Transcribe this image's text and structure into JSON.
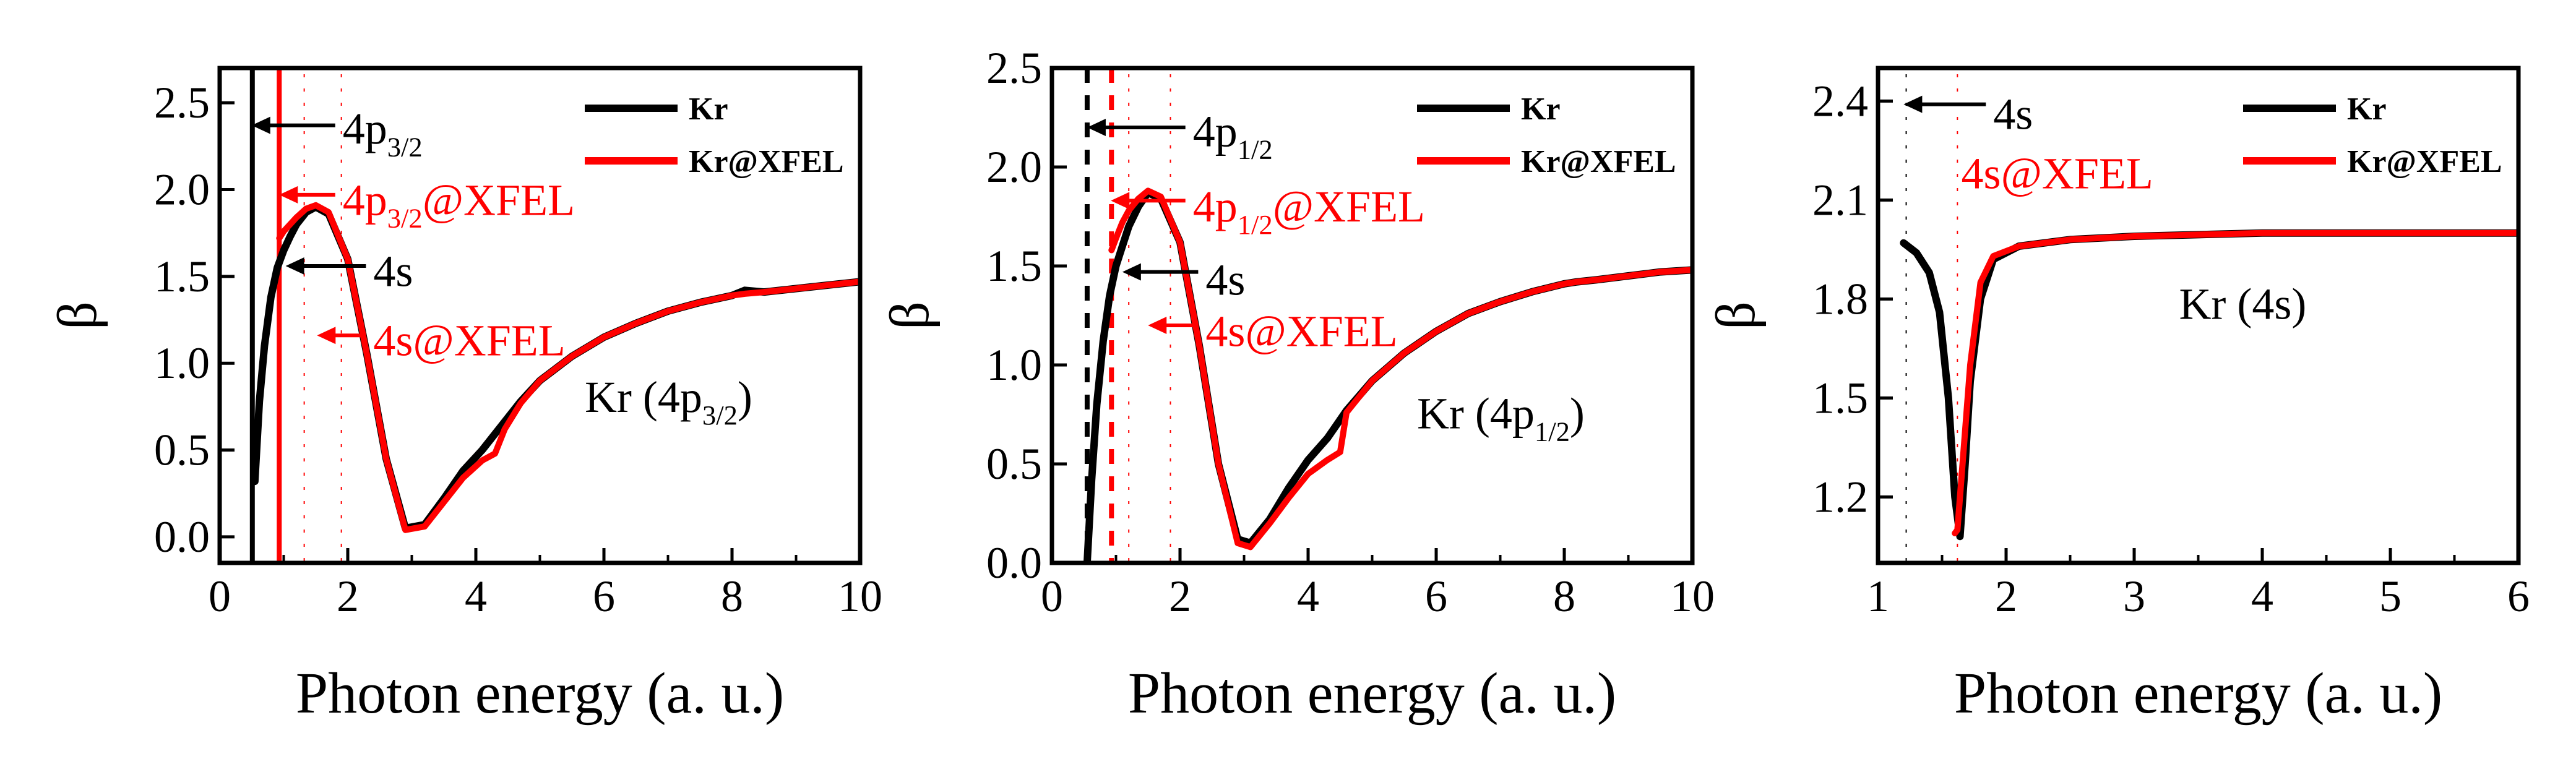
{
  "chart_data": [
    {
      "type": "line",
      "xlabel": "Photon energy (a. u.)",
      "ylabel": "β",
      "xlim": [
        0,
        10
      ],
      "ylim": [
        -0.15,
        2.7
      ],
      "xticks": [
        0,
        2,
        4,
        6,
        8,
        10
      ],
      "yticks": [
        0.0,
        0.5,
        1.0,
        1.5,
        2.0,
        2.5
      ],
      "xtick_labels": [
        "0",
        "2",
        "4",
        "6",
        "8",
        "10"
      ],
      "ytick_labels": [
        "0.0",
        "0.5",
        "1.0",
        "1.5",
        "2.0",
        "2.5"
      ],
      "inset_label": {
        "main": "Kr (4p",
        "sub": "3/2",
        "close": ")",
        "x": 5.7,
        "y": 0.72
      },
      "legend": [
        {
          "label": "Kr",
          "color": "#000000"
        },
        {
          "label": "Kr@XFEL",
          "color": "#ff0000"
        }
      ],
      "thresholds": [
        {
          "x": 0.51,
          "color": "#000000",
          "style": "solid"
        },
        {
          "x": 0.93,
          "color": "#ff0000",
          "style": "solid"
        }
      ],
      "dotted_guides": [
        {
          "x": 1.32,
          "color": "#ff0000"
        },
        {
          "x": 1.9,
          "color": "#ff0000"
        }
      ],
      "annotations": [
        {
          "main": "4p",
          "sub": "3/2",
          "tail": "",
          "color": "#000000",
          "arrow_to": [
            0.5,
            2.37
          ],
          "text_at": [
            1.92,
            2.35
          ]
        },
        {
          "main": "4p",
          "sub": "3/2",
          "tail": "@XFEL",
          "color": "#ff0000",
          "arrow_to": [
            0.93,
            1.97
          ],
          "text_at": [
            1.92,
            1.94
          ]
        },
        {
          "main": "4s",
          "sub": "",
          "tail": "",
          "color": "#000000",
          "arrow_to": [
            1.03,
            1.56
          ],
          "text_at": [
            2.4,
            1.53
          ]
        },
        {
          "main": "4s@XFEL",
          "sub": "",
          "tail": "",
          "color": "#ff0000",
          "arrow_to": [
            1.52,
            1.16
          ],
          "text_at": [
            2.4,
            1.13
          ]
        }
      ],
      "series": [
        {
          "name": "Kr",
          "color": "#000000",
          "x": [
            0.55,
            0.62,
            0.7,
            0.8,
            0.9,
            1.0,
            1.1,
            1.2,
            1.35,
            1.5,
            1.7,
            2.0,
            2.3,
            2.6,
            2.9,
            3.2,
            3.5,
            3.8,
            4.1,
            4.4,
            4.7,
            5.0,
            5.5,
            6.0,
            6.5,
            7.0,
            7.5,
            8.0,
            8.2,
            8.5,
            9.0,
            9.5,
            10.0
          ],
          "y": [
            0.32,
            0.78,
            1.1,
            1.38,
            1.55,
            1.65,
            1.73,
            1.8,
            1.87,
            1.9,
            1.86,
            1.6,
            1.05,
            0.45,
            0.05,
            0.07,
            0.22,
            0.38,
            0.5,
            0.64,
            0.78,
            0.9,
            1.04,
            1.15,
            1.23,
            1.3,
            1.35,
            1.39,
            1.42,
            1.41,
            1.43,
            1.45,
            1.47
          ]
        },
        {
          "name": "Kr@XFEL",
          "color": "#ff0000",
          "x": [
            0.93,
            1.0,
            1.1,
            1.2,
            1.35,
            1.5,
            1.7,
            2.0,
            2.3,
            2.6,
            2.9,
            3.2,
            3.5,
            3.8,
            4.1,
            4.3,
            4.45,
            4.7,
            5.0,
            5.5,
            6.0,
            6.5,
            7.0,
            7.5,
            8.0,
            8.2,
            8.5,
            9.0,
            9.5,
            10.0
          ],
          "y": [
            1.72,
            1.76,
            1.8,
            1.84,
            1.89,
            1.91,
            1.87,
            1.6,
            1.05,
            0.45,
            0.04,
            0.06,
            0.2,
            0.34,
            0.44,
            0.48,
            0.62,
            0.77,
            0.9,
            1.04,
            1.15,
            1.23,
            1.3,
            1.35,
            1.39,
            1.4,
            1.41,
            1.43,
            1.45,
            1.47
          ]
        }
      ]
    },
    {
      "type": "line",
      "xlabel": "Photon energy (a. u.)",
      "ylabel": "β",
      "xlim": [
        0,
        10
      ],
      "ylim": [
        0.0,
        2.5
      ],
      "xticks": [
        0,
        2,
        4,
        6,
        8,
        10
      ],
      "yticks": [
        0.0,
        0.5,
        1.0,
        1.5,
        2.0,
        2.5
      ],
      "xtick_labels": [
        "0",
        "2",
        "4",
        "6",
        "8",
        "10"
      ],
      "ytick_labels": [
        "0.0",
        "0.5",
        "1.0",
        "1.5",
        "2.0",
        "2.5"
      ],
      "inset_label": {
        "main": "Kr (4p",
        "sub": "1/2",
        "close": ")",
        "x": 5.7,
        "y": 0.68
      },
      "legend": [
        {
          "label": "Kr",
          "color": "#000000"
        },
        {
          "label": "Kr@XFEL",
          "color": "#ff0000"
        }
      ],
      "thresholds": [
        {
          "x": 0.55,
          "color": "#000000",
          "style": "dashed"
        },
        {
          "x": 0.93,
          "color": "#ff0000",
          "style": "dashed"
        }
      ],
      "dotted_guides": [
        {
          "x": 1.2,
          "color": "#ff0000"
        },
        {
          "x": 1.85,
          "color": "#ff0000"
        }
      ],
      "annotations": [
        {
          "main": "4p",
          "sub": "1/2",
          "tail": "",
          "color": "#000000",
          "arrow_to": [
            0.55,
            2.2
          ],
          "text_at": [
            2.2,
            2.18
          ]
        },
        {
          "main": "4p",
          "sub": "1/2",
          "tail": "@XFEL",
          "color": "#ff0000",
          "arrow_to": [
            0.92,
            1.83
          ],
          "text_at": [
            2.2,
            1.8
          ]
        },
        {
          "main": "4s",
          "sub": "",
          "tail": "",
          "color": "#000000",
          "arrow_to": [
            1.1,
            1.47
          ],
          "text_at": [
            2.4,
            1.43
          ]
        },
        {
          "main": "4s@XFEL",
          "sub": "",
          "tail": "",
          "color": "#ff0000",
          "arrow_to": [
            1.5,
            1.2
          ],
          "text_at": [
            2.4,
            1.17
          ]
        }
      ],
      "series": [
        {
          "name": "Kr",
          "color": "#000000",
          "x": [
            0.55,
            0.62,
            0.7,
            0.8,
            0.9,
            1.0,
            1.1,
            1.2,
            1.35,
            1.5,
            1.7,
            2.0,
            2.3,
            2.6,
            2.9,
            3.1,
            3.4,
            3.7,
            4.0,
            4.3,
            4.6,
            5.0,
            5.5,
            6.0,
            6.5,
            7.0,
            7.5,
            8.0,
            8.2,
            8.5,
            9.0,
            9.5,
            10.0
          ],
          "y": [
            0.0,
            0.42,
            0.8,
            1.12,
            1.35,
            1.5,
            1.6,
            1.7,
            1.8,
            1.87,
            1.84,
            1.62,
            1.1,
            0.5,
            0.12,
            0.1,
            0.22,
            0.38,
            0.52,
            0.63,
            0.77,
            0.92,
            1.06,
            1.17,
            1.26,
            1.32,
            1.37,
            1.41,
            1.42,
            1.43,
            1.45,
            1.47,
            1.48
          ]
        },
        {
          "name": "Kr@XFEL",
          "color": "#ff0000",
          "x": [
            0.93,
            1.0,
            1.1,
            1.2,
            1.35,
            1.5,
            1.7,
            2.0,
            2.3,
            2.6,
            2.9,
            3.1,
            3.4,
            3.7,
            4.0,
            4.3,
            4.5,
            4.6,
            5.0,
            5.5,
            6.0,
            6.5,
            7.0,
            7.5,
            8.0,
            8.2,
            8.5,
            9.0,
            9.5,
            10.0
          ],
          "y": [
            1.58,
            1.64,
            1.72,
            1.78,
            1.84,
            1.88,
            1.85,
            1.62,
            1.1,
            0.5,
            0.1,
            0.08,
            0.2,
            0.33,
            0.45,
            0.52,
            0.56,
            0.76,
            0.92,
            1.06,
            1.17,
            1.26,
            1.32,
            1.37,
            1.41,
            1.42,
            1.43,
            1.45,
            1.47,
            1.48
          ]
        }
      ]
    },
    {
      "type": "line",
      "xlabel": "Photon energy (a. u.)",
      "ylabel": "β",
      "xlim": [
        1,
        6
      ],
      "ylim": [
        1.0,
        2.5
      ],
      "xticks": [
        1,
        2,
        3,
        4,
        5,
        6
      ],
      "yticks": [
        1.2,
        1.5,
        1.8,
        2.1,
        2.4
      ],
      "xtick_labels": [
        "1",
        "2",
        "3",
        "4",
        "5",
        "6"
      ],
      "ytick_labels": [
        "1.2",
        "1.5",
        "1.8",
        "2.1",
        "2.4"
      ],
      "inset_label": {
        "main": "Kr (4s)",
        "sub": "",
        "close": "",
        "x": 3.35,
        "y": 1.74
      },
      "legend": [
        {
          "label": "Kr",
          "color": "#000000"
        },
        {
          "label": "Kr@XFEL",
          "color": "#ff0000"
        }
      ],
      "thresholds": [],
      "dotted_guides": [
        {
          "x": 1.22,
          "color": "#000000"
        },
        {
          "x": 1.62,
          "color": "#ff0000"
        }
      ],
      "annotations": [
        {
          "main": "4s",
          "sub": "",
          "tail": "",
          "color": "#000000",
          "arrow_to": [
            1.2,
            2.39
          ],
          "text_at": [
            1.9,
            2.36
          ]
        },
        {
          "main": "4s@XFEL",
          "sub": "",
          "tail": "",
          "color": "#ff0000",
          "arrow_to": null,
          "text_at": [
            1.65,
            2.18
          ]
        }
      ],
      "series": [
        {
          "name": "Kr",
          "color": "#000000",
          "x": [
            1.2,
            1.3,
            1.4,
            1.48,
            1.55,
            1.6,
            1.64,
            1.68,
            1.72,
            1.8,
            1.9,
            2.1,
            2.5,
            3.0,
            4.0,
            5.0,
            6.0
          ],
          "y": [
            1.97,
            1.94,
            1.88,
            1.76,
            1.5,
            1.2,
            1.08,
            1.3,
            1.55,
            1.8,
            1.92,
            1.96,
            1.98,
            1.99,
            2.0,
            2.0,
            2.0
          ]
        },
        {
          "name": "Kr@XFEL",
          "color": "#ff0000",
          "x": [
            1.6,
            1.62,
            1.66,
            1.72,
            1.8,
            1.9,
            2.1,
            2.5,
            3.0,
            4.0,
            5.0,
            6.0
          ],
          "y": [
            1.09,
            1.1,
            1.3,
            1.6,
            1.85,
            1.93,
            1.96,
            1.98,
            1.99,
            2.0,
            2.0,
            2.0
          ]
        }
      ]
    }
  ]
}
